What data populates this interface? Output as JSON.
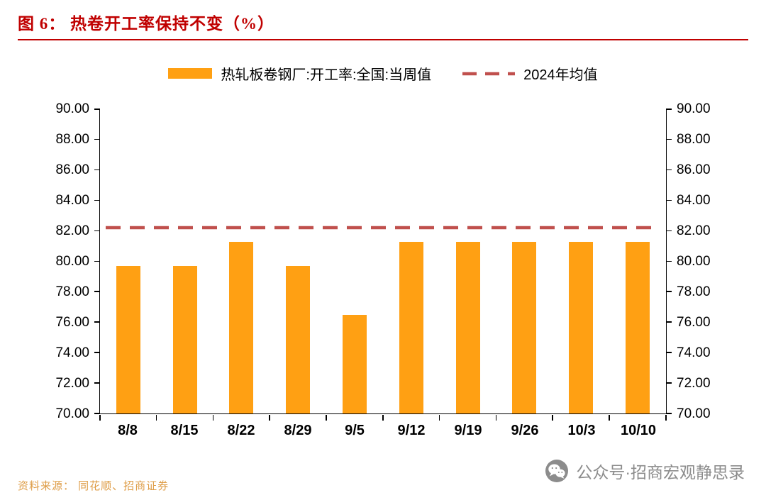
{
  "header": {
    "title": "图 6： 热卷开工率保持不变（%）"
  },
  "legend": {
    "bar_label": "热轧板卷钢厂:开工率:全国:当周值",
    "line_label": "2024年均值"
  },
  "chart_data": {
    "type": "bar",
    "title": "热卷开工率保持不变（%）",
    "categories": [
      "8/8",
      "8/15",
      "8/22",
      "8/29",
      "9/5",
      "9/12",
      "9/19",
      "9/26",
      "10/3",
      "10/10"
    ],
    "series": [
      {
        "name": "热轧板卷钢厂:开工率:全国:当周值",
        "type": "bar",
        "color": "#FFA013",
        "values": [
          79.7,
          79.7,
          81.3,
          79.7,
          76.5,
          81.3,
          81.3,
          81.3,
          81.3,
          81.3
        ]
      },
      {
        "name": "2024年均值",
        "type": "dashed-line",
        "color": "#C0504D",
        "value": 82.2
      }
    ],
    "xlabel": "",
    "ylabel": "",
    "ylim": [
      70,
      90
    ],
    "yticks": [
      90,
      88,
      86,
      84,
      82,
      80,
      78,
      76,
      74,
      72,
      70
    ],
    "grid": false,
    "legend_position": "top",
    "dual_y_axis": true
  },
  "footer": {
    "source": "资料来源： 同花顺、招商证券"
  },
  "watermark": {
    "text": "公众号·招商宏观静思录"
  },
  "colors": {
    "title": "#C00000",
    "bar": "#FFA013",
    "avg_line": "#C0504D",
    "source_text": "#DE9C45",
    "watermark": "#8C8C8C"
  }
}
